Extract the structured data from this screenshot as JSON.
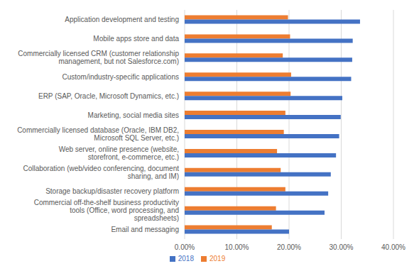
{
  "chart_data": {
    "type": "bar",
    "orientation": "horizontal",
    "categories": [
      "Application development and testing",
      "Mobile apps store and data",
      "Commercially licensed CRM (customer relationship management, but not Salesforce.com)",
      "Custom/industry-specific applications",
      "ERP (SAP, Oracle, Microsoft Dynamics, etc.)",
      "Marketing, social media sites",
      "Commercially licensed database (Oracle, IBM DB2, Microsoft SQL Server, etc.)",
      "Web server, online presence (website, storefront, e-commerce, etc.)",
      "Collaboration (web/video conferencing, document sharing, and IM)",
      "Storage backup/disaster recovery platform",
      "Commercial off-the-shelf business productivity tools (Office, word processing, and spreadsheets)",
      "Email and messaging"
    ],
    "series": [
      {
        "name": "2019",
        "color": "#ed7d31",
        "values": [
          19.8,
          20.2,
          18.8,
          20.4,
          20.3,
          19.3,
          19.0,
          17.7,
          18.4,
          19.3,
          17.5,
          16.7
        ]
      },
      {
        "name": "2018",
        "color": "#4472c4",
        "values": [
          33.6,
          32.2,
          32.1,
          31.9,
          30.2,
          29.9,
          29.6,
          29.0,
          28.0,
          27.5,
          26.8,
          20.0
        ]
      }
    ],
    "xlim": [
      0,
      40
    ],
    "xticks": [
      {
        "value": 0,
        "label": "0.00%"
      },
      {
        "value": 10,
        "label": "10.00%"
      },
      {
        "value": 20,
        "label": "20.00%"
      },
      {
        "value": 30,
        "label": "30.00%"
      },
      {
        "value": 40,
        "label": "40.00%"
      }
    ],
    "grid": true,
    "legend": "bottom"
  }
}
